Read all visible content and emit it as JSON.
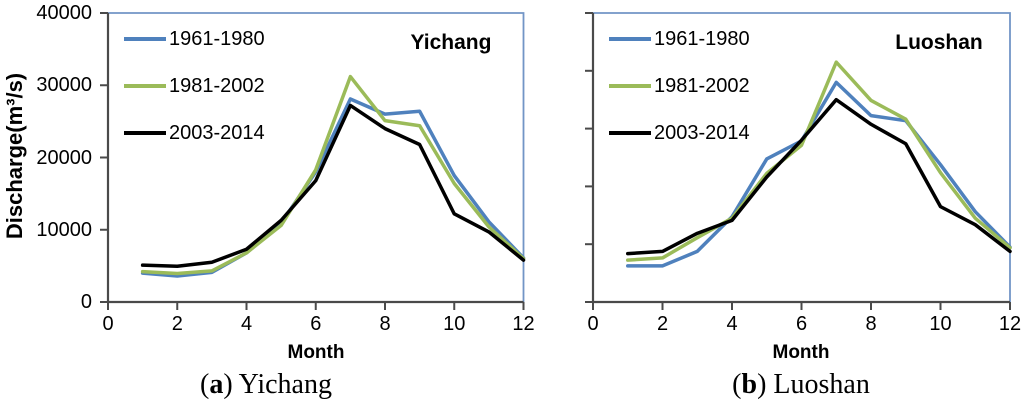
{
  "figure": {
    "background": "#ffffff",
    "axis_color": "#4a4a4a",
    "plot_border_color": "#7295c6",
    "text_color": "#000000"
  },
  "chart_data": [
    {
      "type": "line",
      "title": "Yichang",
      "caption": {
        "open": "(",
        "letter": "a",
        "rest": ") Yichang"
      },
      "xlabel": "Month",
      "ylabel": "Discharge(m³/s)",
      "xlim": [
        0,
        12
      ],
      "ylim": [
        0,
        40000
      ],
      "x_ticks": [
        0,
        2,
        4,
        6,
        8,
        10,
        12
      ],
      "y_ticks": [
        0,
        10000,
        20000,
        30000,
        40000
      ],
      "y_tick_labels_visible": true,
      "grid": false,
      "legend_position": "inside-top-left",
      "months": [
        1,
        2,
        3,
        4,
        5,
        6,
        7,
        8,
        9,
        10,
        11,
        12
      ],
      "series": [
        {
          "name": "1961-1980",
          "color": "#4F81BD",
          "values": [
            4000,
            3600,
            4100,
            6800,
            10900,
            18000,
            28100,
            26000,
            26400,
            17500,
            11100,
            6100
          ]
        },
        {
          "name": "1981-2002",
          "color": "#9BBB59",
          "values": [
            4200,
            3950,
            4300,
            6800,
            10600,
            18300,
            31200,
            25100,
            24400,
            16400,
            10400,
            6000
          ]
        },
        {
          "name": "2003-2014",
          "color": "#000000",
          "values": [
            5100,
            4950,
            5500,
            7300,
            11300,
            16800,
            27200,
            24000,
            21800,
            12200,
            9700,
            5800
          ]
        }
      ]
    },
    {
      "type": "line",
      "title": "Luoshan",
      "caption": {
        "open": "(",
        "letter": "b",
        "rest": ") Luoshan"
      },
      "xlabel": "Month",
      "ylabel": "",
      "xlim": [
        0,
        12
      ],
      "ylim": [
        0,
        40000
      ],
      "x_ticks": [
        0,
        2,
        4,
        6,
        8,
        10,
        12
      ],
      "y_ticks": [
        0,
        8000,
        16000,
        24000,
        32000,
        40000
      ],
      "y_tick_labels_visible": false,
      "grid": false,
      "legend_position": "inside-top-left",
      "months": [
        1,
        2,
        3,
        4,
        5,
        6,
        7,
        8,
        9,
        10,
        11,
        12
      ],
      "series": [
        {
          "name": "1961-1980",
          "color": "#4F81BD",
          "values": [
            5000,
            5000,
            7000,
            11800,
            19800,
            22300,
            30400,
            25800,
            25100,
            19000,
            12500,
            7600
          ]
        },
        {
          "name": "1981-2002",
          "color": "#9BBB59",
          "values": [
            5800,
            6100,
            8900,
            11600,
            17800,
            21700,
            33200,
            27900,
            25300,
            17900,
            11600,
            7500
          ]
        },
        {
          "name": "2003-2014",
          "color": "#000000",
          "values": [
            6700,
            7000,
            9500,
            11300,
            17300,
            22400,
            28000,
            24600,
            21900,
            13200,
            10700,
            7000
          ]
        }
      ]
    }
  ]
}
